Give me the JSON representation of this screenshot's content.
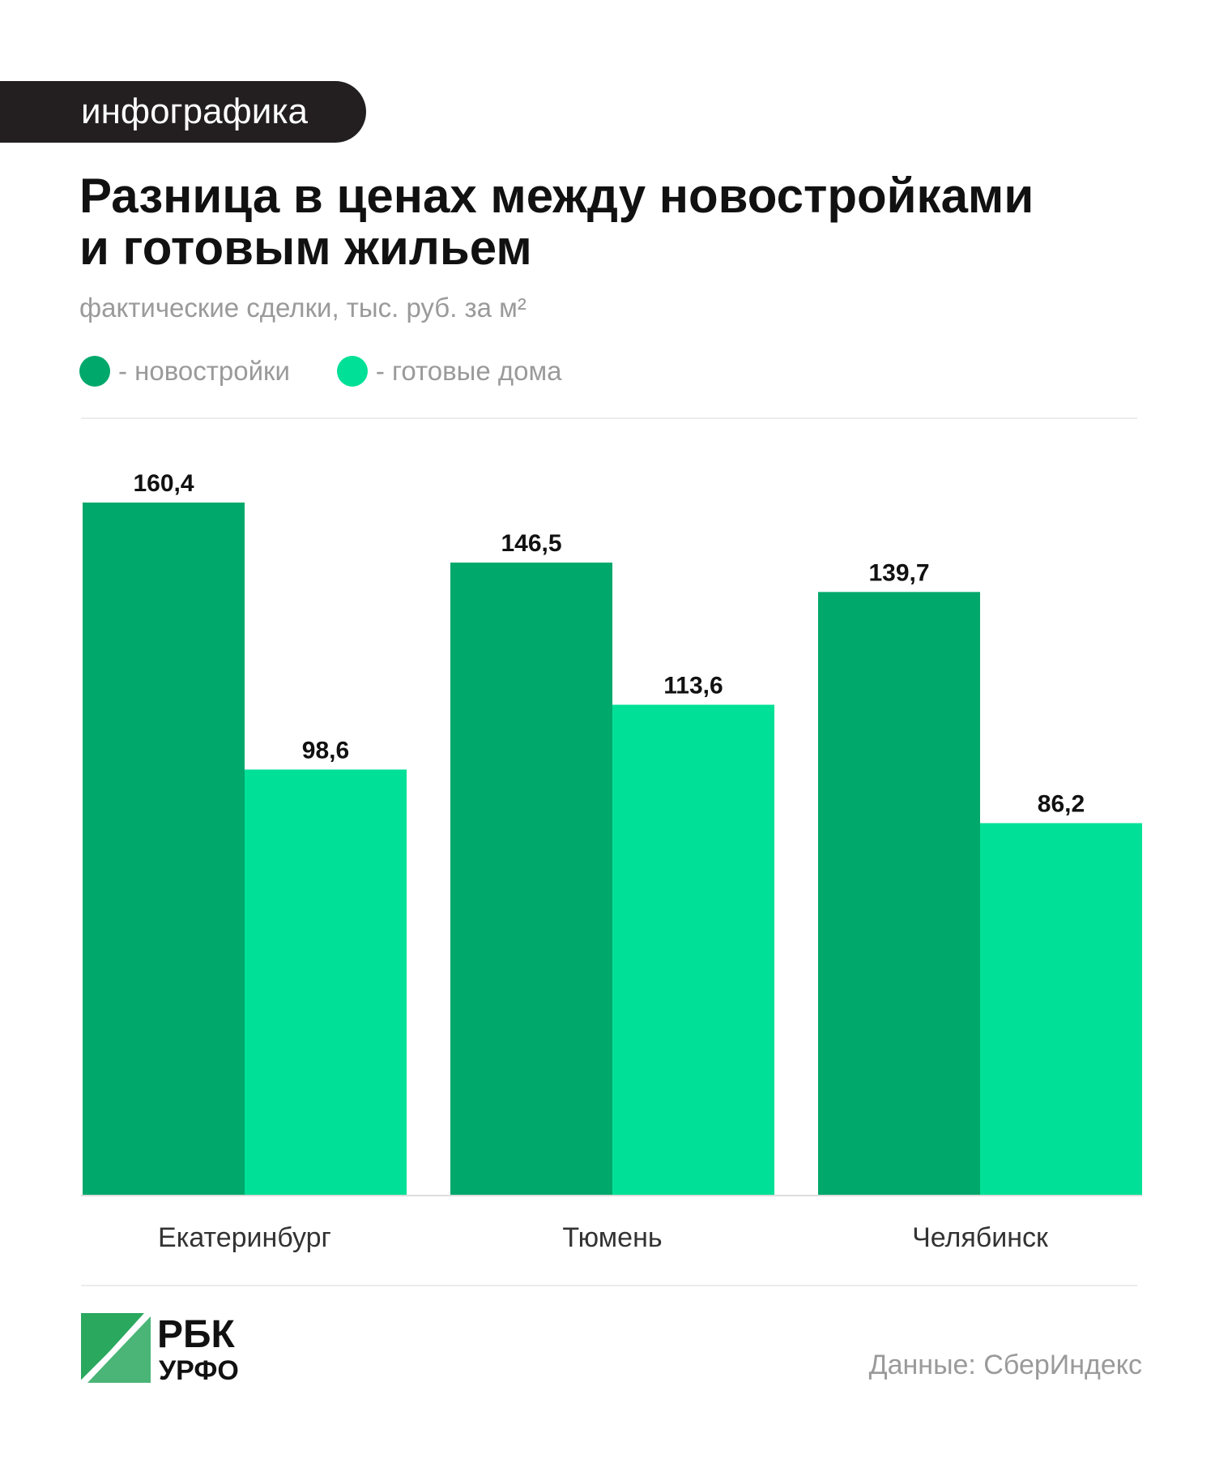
{
  "tag": "инфографика",
  "title_line1": "Разница в ценах между новостройками",
  "title_line2": "и готовым жильем",
  "subtitle": "фактические сделки, тыс. руб. за м²",
  "legend": [
    {
      "label": "- новостройки",
      "color": "#00a86b"
    },
    {
      "label": "- готовые дома",
      "color": "#00e096"
    }
  ],
  "chart_data": {
    "type": "bar",
    "title": "Разница в ценах между новостройками и готовым жильем",
    "subtitle": "фактические сделки, тыс. руб. за м²",
    "categories": [
      "Екатеринбург",
      "Тюмень",
      "Челябинск"
    ],
    "series": [
      {
        "name": "новостройки",
        "values": [
          160.4,
          146.5,
          139.7
        ],
        "labels": [
          "160,4",
          "146,5",
          "139,7"
        ],
        "color": "#00a86b"
      },
      {
        "name": "готовые дома",
        "values": [
          98.6,
          113.6,
          86.2
        ],
        "labels": [
          "98,6",
          "113,6",
          "86,2"
        ],
        "color": "#00e096"
      }
    ],
    "ylim": [
      0,
      160.4
    ],
    "grid": false,
    "legend_position": "top-left"
  },
  "logo": {
    "line1": "РБК",
    "line2": "УРФО",
    "color": "#2aa85e"
  },
  "source": "Данные: СберИндекс"
}
